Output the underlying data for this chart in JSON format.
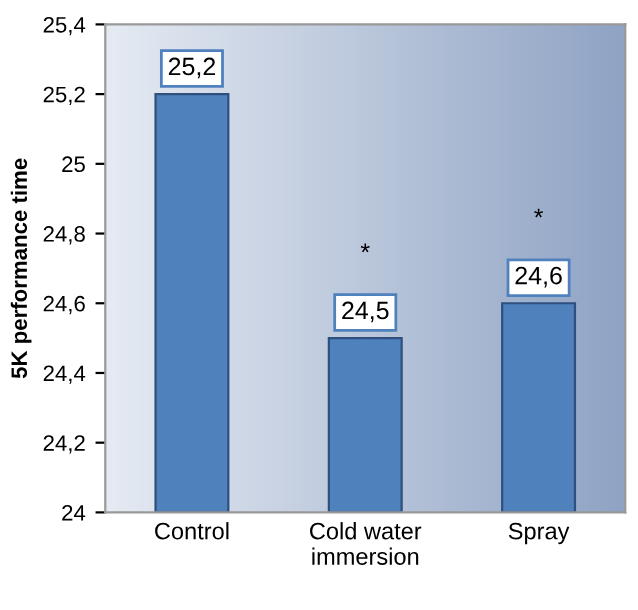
{
  "chart_data": {
    "type": "bar",
    "ylabel": "5K performance time",
    "categories": [
      "Control",
      "Cold water\nimmersion",
      "Spray"
    ],
    "values": [
      25.2,
      24.5,
      24.6
    ],
    "value_labels": [
      "25,2",
      "24,5",
      "24,6"
    ],
    "color": "#4f81bd",
    "ylim": [
      24,
      25.4
    ],
    "yticks": [
      {
        "value": 24,
        "label": "24"
      },
      {
        "value": 24.2,
        "label": "24,2"
      },
      {
        "value": 24.4,
        "label": "24,4"
      },
      {
        "value": 24.6,
        "label": "24,6"
      },
      {
        "value": 24.8,
        "label": "24,8"
      },
      {
        "value": 25,
        "label": "25"
      },
      {
        "value": 25.2,
        "label": "25,2"
      },
      {
        "value": 25.4,
        "label": "25,4"
      }
    ],
    "annotations": [
      "*",
      "*"
    ],
    "grid": false,
    "legend": false
  }
}
